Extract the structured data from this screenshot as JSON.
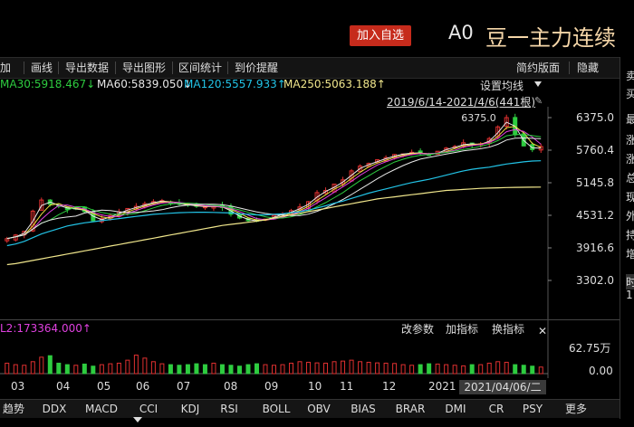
{
  "header": {
    "add_button": "加入自选",
    "code": "A0",
    "name": "豆一主力连续"
  },
  "toolbar": {
    "items": [
      "加",
      "画线",
      "导出数据",
      "导出图形",
      "区间统计",
      "到价提醒"
    ],
    "right": [
      "简约版面",
      "隐藏"
    ]
  },
  "ma_legend": [
    {
      "label": "MA30:5918.467↓",
      "color": "#2ecc40"
    },
    {
      "label": "MA60:5839.050↓",
      "color": "#e8e8e8"
    },
    {
      "label": "MA120:5557.933↑",
      "color": "#22c3e6"
    },
    {
      "label": "MA250:5063.188↑",
      "color": "#f0e68c"
    }
  ],
  "set_ma_label": "设置均线",
  "range_label": "2019/6/14-2021/4/6(441根)",
  "price_axis": [
    "6375.0",
    "5760.4",
    "5145.8",
    "4531.2",
    "3916.6",
    "3302.0"
  ],
  "max_annotation": "6375.0",
  "volume": {
    "label": "L2:173364.000↑",
    "axis": [
      "62.75万",
      "0.00"
    ],
    "buttons": [
      "改参数",
      "加指标",
      "换指标"
    ]
  },
  "x_axis": [
    "03",
    "04",
    "05",
    "06",
    "07",
    "08",
    "09",
    "10",
    "11",
    "12",
    "2021"
  ],
  "current_date": "2021/04/06/二",
  "bottom_tabs": [
    "趋势",
    "DDX",
    "MACD",
    "CCI",
    "KDJ",
    "RSI",
    "BOLL",
    "OBV",
    "BIAS",
    "BRAR",
    "DMI",
    "CR",
    "PSY",
    "更多"
  ],
  "right_panel": [
    "卖",
    "买",
    "最",
    "涨",
    "涨",
    "总",
    "现",
    "外",
    "持",
    "增",
    "时",
    "1"
  ],
  "colors": {
    "up": "#e03030",
    "down": "#2ecc40",
    "ma5": "#e8e8e8",
    "ma10": "#f0e040",
    "ma20": "#e040e0",
    "ma30": "#2ecc40",
    "ma60": "#e8e8e8",
    "ma120": "#22c3e6",
    "ma250": "#f0e68c",
    "add_button": "#c62b1c"
  },
  "chart_data": {
    "type": "candlestick",
    "price_range": [
      3302.0,
      6375.0
    ],
    "max_label": 6375.0,
    "close_series": [
      4090,
      4160,
      4230,
      4610,
      4820,
      4740,
      4700,
      4640,
      4660,
      4600,
      4430,
      4470,
      4530,
      4600,
      4660,
      4700,
      4750,
      4790,
      4810,
      4760,
      4740,
      4720,
      4700,
      4690,
      4700,
      4680,
      4550,
      4480,
      4430,
      4420,
      4460,
      4530,
      4560,
      4620,
      4690,
      4790,
      4960,
      5000,
      5120,
      5200,
      5370,
      5460,
      5510,
      5580,
      5620,
      5680,
      5690,
      5720,
      5700,
      5660,
      5740,
      5800,
      5830,
      5900,
      5860,
      5880,
      5980,
      6200,
      6375,
      6050,
      5840,
      5770,
      5830
    ],
    "ma120_series": [
      3960,
      3990,
      4040,
      4110,
      4180,
      4230,
      4280,
      4330,
      4360,
      4390,
      4410,
      4430,
      4450,
      4470,
      4490,
      4510,
      4530,
      4550,
      4560,
      4570,
      4580,
      4585,
      4590,
      4590,
      4585,
      4580,
      4575,
      4560,
      4550,
      4540,
      4540,
      4550,
      4560,
      4580,
      4600,
      4630,
      4670,
      4710,
      4760,
      4800,
      4850,
      4900,
      4950,
      4990,
      5030,
      5070,
      5110,
      5150,
      5180,
      5210,
      5250,
      5290,
      5330,
      5370,
      5400,
      5420,
      5440,
      5470,
      5500,
      5520,
      5540,
      5555,
      5560
    ],
    "ma250_series": [
      3600,
      3620,
      3650,
      3680,
      3710,
      3740,
      3770,
      3800,
      3830,
      3860,
      3890,
      3920,
      3950,
      3980,
      4010,
      4040,
      4070,
      4100,
      4130,
      4160,
      4190,
      4220,
      4250,
      4280,
      4310,
      4340,
      4360,
      4380,
      4400,
      4420,
      4450,
      4480,
      4510,
      4540,
      4570,
      4600,
      4630,
      4660,
      4690,
      4720,
      4750,
      4780,
      4810,
      4840,
      4860,
      4880,
      4900,
      4920,
      4940,
      4960,
      4980,
      5000,
      5010,
      5020,
      5030,
      5040,
      5045,
      5050,
      5055,
      5058,
      5060,
      5062,
      5063
    ],
    "volume_max": 627500,
    "volume_series": [
      0.35,
      0.3,
      0.28,
      0.4,
      0.55,
      0.6,
      0.35,
      0.3,
      0.28,
      0.32,
      0.25,
      0.3,
      0.33,
      0.35,
      0.45,
      0.62,
      0.52,
      0.4,
      0.33,
      0.3,
      0.28,
      0.3,
      0.33,
      0.3,
      0.35,
      0.3,
      0.28,
      0.25,
      0.3,
      0.33,
      0.3,
      0.28,
      0.3,
      0.35,
      0.4,
      0.38,
      0.36,
      0.35,
      0.4,
      0.42,
      0.45,
      0.4,
      0.38,
      0.36,
      0.35,
      0.34,
      0.3,
      0.28,
      0.3,
      0.33,
      0.32,
      0.3,
      0.28,
      0.26,
      0.3,
      0.3,
      0.35,
      0.4,
      0.38,
      0.3,
      0.28,
      0.25,
      0.22
    ]
  }
}
